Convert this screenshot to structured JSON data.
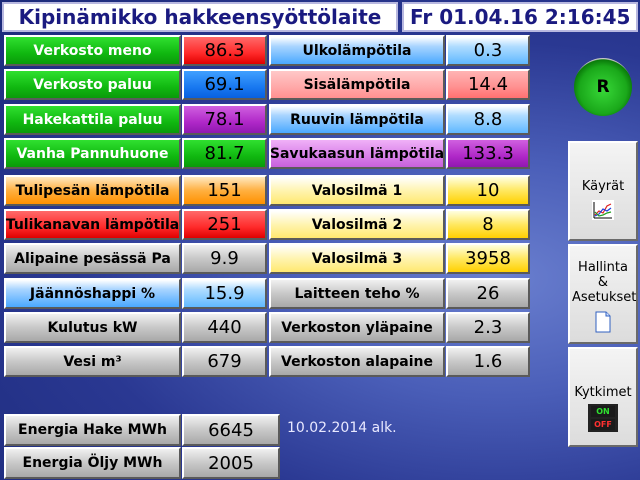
{
  "header": {
    "title": "Kipinämikko hakkeensyöttölaite",
    "datetime": "Fr 01.04.16  2:16:45"
  },
  "left_rows": [
    {
      "label": "Verkosto meno",
      "value": "86.3"
    },
    {
      "label": "Verkosto paluu",
      "value": "69.1"
    },
    {
      "label": "Hakekattila paluu",
      "value": "78.1"
    },
    {
      "label": "Vanha Pannuhuone",
      "value": "81.7"
    },
    {
      "label": "Tulipesän lämpötila",
      "value": "151"
    },
    {
      "label": "Tulikanavan lämpötila",
      "value": "251"
    },
    {
      "label": "Alipaine pesässä Pa",
      "value": "9.9"
    },
    {
      "label": "Jäännöshappi %",
      "value": "15.9"
    },
    {
      "label": "Kulutus kW",
      "value": "440"
    },
    {
      "label": "Vesi m³",
      "value": "679"
    }
  ],
  "right_rows": [
    {
      "label": "Ulkolämpötila",
      "value": "0.3"
    },
    {
      "label": "Sisälämpötila",
      "value": "14.4"
    },
    {
      "label": "Ruuvin lämpötila",
      "value": "8.8"
    },
    {
      "label": "Savukaasun lämpötila",
      "value": "133.3"
    },
    {
      "label": "Valosilmä 1",
      "value": "10"
    },
    {
      "label": "Valosilmä 2",
      "value": "8"
    },
    {
      "label": "Valosilmä 3",
      "value": "3958"
    },
    {
      "label": "Laitteen teho %",
      "value": "26"
    },
    {
      "label": "Verkoston yläpaine",
      "value": "2.3"
    },
    {
      "label": "Verkoston alapaine",
      "value": "1.6"
    }
  ],
  "energy": [
    {
      "label": "Energia Hake MWh",
      "value": "6645"
    },
    {
      "label": "Energia Öljy MWh",
      "value": "2005"
    }
  ],
  "energy_note": "10.02.2014 alk.",
  "side": {
    "r_label": "R",
    "charts_label": "Käyrät",
    "charts_icon": "chart-icon",
    "settings_label": "Hallinta & Asetukset",
    "settings_icon": "document-icon",
    "switches_label": "Kytkimet",
    "switch_on": "ON",
    "switch_off": "OFF"
  },
  "colors": {
    "background": "#2a3892",
    "header_text": "#1a1a80"
  }
}
